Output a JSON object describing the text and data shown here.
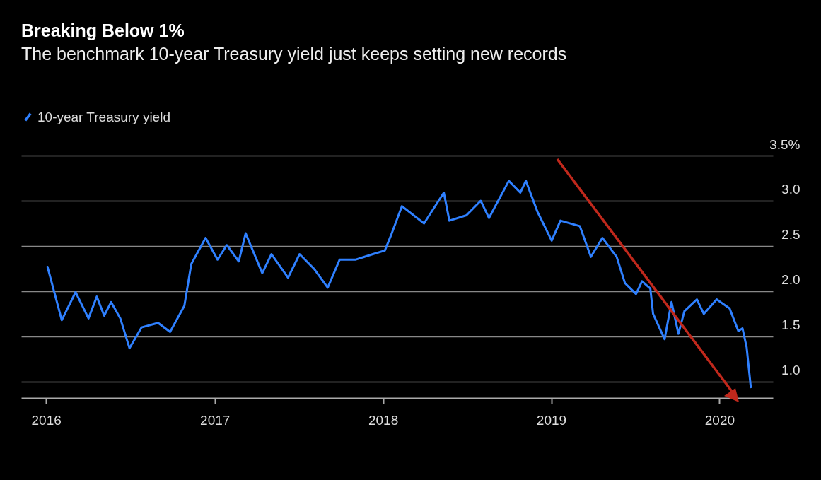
{
  "chart_data": {
    "type": "line",
    "title": "Breaking Below 1%",
    "subtitle": "The benchmark 10-year Treasury yield just keeps setting new records",
    "x": [
      "2016-01-04",
      "2016-02-04",
      "2016-03-05",
      "2016-04-02",
      "2016-04-20",
      "2016-05-06",
      "2016-05-21",
      "2016-06-10",
      "2016-06-30",
      "2016-07-26",
      "2016-08-31",
      "2016-09-26",
      "2016-10-27",
      "2016-11-11",
      "2016-12-12",
      "2017-01-07",
      "2017-01-27",
      "2017-02-22",
      "2017-03-09",
      "2017-04-14",
      "2017-05-04",
      "2017-06-09",
      "2017-07-04",
      "2017-08-04",
      "2017-09-03",
      "2017-09-29",
      "2017-11-03",
      "2017-12-10",
      "2018-01-05",
      "2018-01-20",
      "2018-02-11",
      "2018-03-31",
      "2018-05-13",
      "2018-05-25",
      "2018-07-01",
      "2018-08-01",
      "2018-08-19",
      "2018-10-01",
      "2018-10-26",
      "2018-11-07",
      "2018-12-02",
      "2019-01-02",
      "2019-01-21",
      "2019-03-04",
      "2019-03-28",
      "2019-04-22",
      "2019-05-23",
      "2019-06-10",
      "2019-07-04",
      "2019-07-17",
      "2019-08-04",
      "2019-08-10",
      "2019-09-04",
      "2019-09-19",
      "2019-10-04",
      "2019-10-17",
      "2019-11-13",
      "2019-11-28",
      "2019-12-26",
      "2020-01-23",
      "2020-02-11",
      "2020-02-20",
      "2020-02-29",
      "2020-03-09"
    ],
    "series": [
      {
        "name": "10-year Treasury yield",
        "color": "#2f80ff",
        "values": [
          2.27,
          1.68,
          1.99,
          1.7,
          1.94,
          1.73,
          1.88,
          1.7,
          1.37,
          1.6,
          1.65,
          1.55,
          1.84,
          2.3,
          2.59,
          2.35,
          2.51,
          2.33,
          2.64,
          2.2,
          2.41,
          2.15,
          2.41,
          2.25,
          2.04,
          2.35,
          2.35,
          2.41,
          2.45,
          2.64,
          2.94,
          2.75,
          3.09,
          2.78,
          2.84,
          3.0,
          2.81,
          3.22,
          3.09,
          3.22,
          2.88,
          2.56,
          2.78,
          2.72,
          2.38,
          2.59,
          2.38,
          2.09,
          1.97,
          2.11,
          2.03,
          1.75,
          1.47,
          1.88,
          1.53,
          1.78,
          1.91,
          1.75,
          1.91,
          1.81,
          1.56,
          1.59,
          1.38,
          0.94
        ]
      }
    ],
    "xlim": [
      "2015-11-08",
      "2020-04-26"
    ],
    "xticks": [
      "2016",
      "2017",
      "2018",
      "2019",
      "2020"
    ],
    "ylim": [
      0.82,
      3.5
    ],
    "yticks": [
      {
        "value": 1,
        "label": "1.0"
      },
      {
        "value": 1.5,
        "label": "1.5"
      },
      {
        "value": 2,
        "label": "2.0"
      },
      {
        "value": 2.5,
        "label": "2.5"
      },
      {
        "value": 3,
        "label": "3.0"
      },
      {
        "value": 3.5,
        "label": "3.5%"
      }
    ],
    "grid": "y",
    "legend": "top left"
  }
}
